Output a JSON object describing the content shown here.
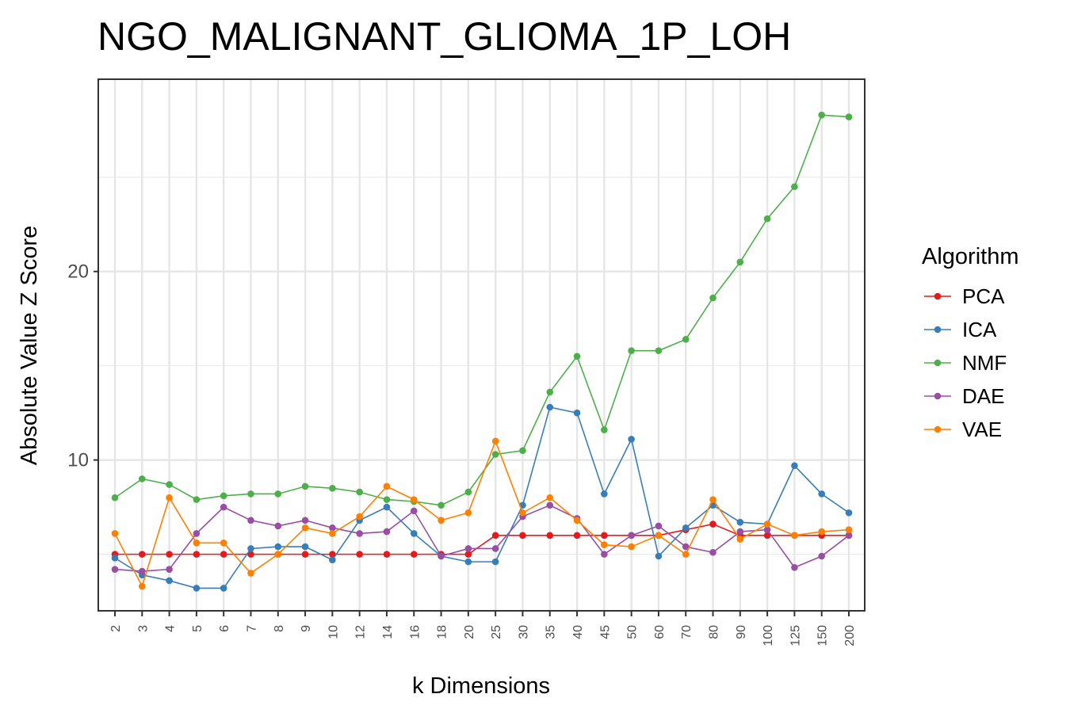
{
  "chart_data": {
    "type": "line",
    "title": "NGO_MALIGNANT_GLIOMA_1P_LOH",
    "xlabel": "k Dimensions",
    "ylabel": "Absolute Value Z Score",
    "categories": [
      "2",
      "3",
      "4",
      "5",
      "6",
      "7",
      "8",
      "9",
      "10",
      "12",
      "14",
      "16",
      "18",
      "20",
      "25",
      "30",
      "35",
      "40",
      "45",
      "50",
      "60",
      "70",
      "80",
      "90",
      "100",
      "125",
      "150",
      "200"
    ],
    "y_ticks": [
      10,
      20
    ],
    "ylim": [
      2,
      30.2
    ],
    "grid": true,
    "legend_title": "Algorithm",
    "legend_position": "right",
    "series": [
      {
        "name": "PCA",
        "color": "#e41a1c",
        "values": [
          5.0,
          5.0,
          5.0,
          5.0,
          5.0,
          5.0,
          5.0,
          5.0,
          5.0,
          5.0,
          5.0,
          5.0,
          5.0,
          5.0,
          6.0,
          6.0,
          6.0,
          6.0,
          6.0,
          6.0,
          6.0,
          6.3,
          6.6,
          6.0,
          6.0,
          6.0,
          6.0,
          6.0
        ]
      },
      {
        "name": "ICA",
        "color": "#377eb8",
        "values": [
          4.8,
          3.9,
          3.6,
          3.2,
          3.2,
          5.3,
          5.4,
          5.4,
          4.7,
          6.8,
          7.5,
          6.1,
          4.9,
          4.6,
          4.6,
          7.6,
          12.8,
          12.5,
          8.2,
          11.1,
          4.9,
          6.4,
          7.6,
          6.7,
          6.6,
          9.7,
          8.2,
          7.2
        ]
      },
      {
        "name": "NMF",
        "color": "#4daf4a",
        "values": [
          8.0,
          9.0,
          8.7,
          7.9,
          8.1,
          8.2,
          8.2,
          8.6,
          8.5,
          8.3,
          7.9,
          7.8,
          7.6,
          8.3,
          10.3,
          10.5,
          13.6,
          15.5,
          11.6,
          15.8,
          15.8,
          16.4,
          18.6,
          20.5,
          22.8,
          24.5,
          28.3,
          28.2
        ]
      },
      {
        "name": "DAE",
        "color": "#984ea3",
        "values": [
          4.2,
          4.1,
          4.2,
          6.1,
          7.5,
          6.8,
          6.5,
          6.8,
          6.4,
          6.1,
          6.2,
          7.3,
          4.9,
          5.3,
          5.3,
          7.0,
          7.6,
          6.9,
          5.0,
          6.0,
          6.5,
          5.4,
          5.1,
          6.2,
          6.3,
          4.3,
          4.9,
          6.0
        ]
      },
      {
        "name": "VAE",
        "color": "#ff7f00",
        "values": [
          6.1,
          3.3,
          8.0,
          5.6,
          5.6,
          4.0,
          5.0,
          6.4,
          6.1,
          7.0,
          8.6,
          7.9,
          6.8,
          7.2,
          11.0,
          7.2,
          8.0,
          6.8,
          5.5,
          5.4,
          6.0,
          5.0,
          7.9,
          5.8,
          6.6,
          6.0,
          6.2,
          6.3
        ]
      }
    ]
  }
}
